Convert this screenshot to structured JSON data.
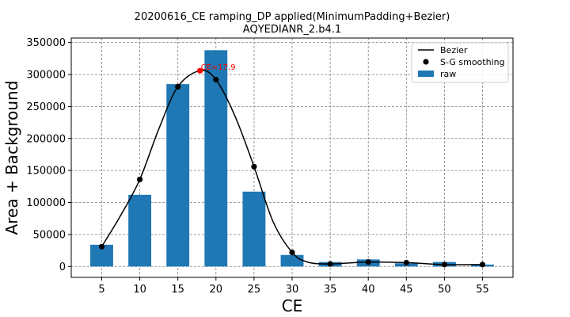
{
  "chart_data": {
    "type": "bar",
    "title": "20200616_CE ramping_DP applied(MinimumPadding+Bezier)",
    "subtitle": "AQYEDIANR_2.b4.1",
    "xlabel": "CE",
    "ylabel": "Area + Background",
    "xlim": [
      1,
      59
    ],
    "ylim": [
      -17000,
      357000
    ],
    "x_ticks": [
      5,
      10,
      15,
      20,
      25,
      30,
      35,
      40,
      45,
      50,
      55
    ],
    "y_ticks": [
      0,
      50000,
      100000,
      150000,
      200000,
      250000,
      300000,
      350000
    ],
    "grid": true,
    "legend": {
      "position": "top-right",
      "entries": [
        {
          "label": "Bezier",
          "kind": "line",
          "color": "#000000"
        },
        {
          "label": "S-G smoothing",
          "kind": "point",
          "color": "#000000"
        },
        {
          "label": "raw",
          "kind": "bar",
          "color": "#1f77b4"
        }
      ]
    },
    "series": [
      {
        "name": "raw",
        "kind": "bar",
        "color": "#1f77b4",
        "bar_width": 3,
        "x": [
          5,
          10,
          15,
          20,
          25,
          30,
          35,
          40,
          45,
          50,
          55
        ],
        "values": [
          34000,
          112000,
          285000,
          338000,
          117000,
          18000,
          7000,
          11000,
          5000,
          7000,
          3000
        ]
      },
      {
        "name": "S-G smoothing",
        "kind": "scatter",
        "color": "#000000",
        "x": [
          5,
          10,
          15,
          20,
          25,
          30,
          35,
          40,
          45,
          50,
          55
        ],
        "values": [
          31000,
          136000,
          281000,
          292000,
          156000,
          22000,
          4000,
          7000,
          6000,
          3000,
          3000
        ]
      },
      {
        "name": "Bezier",
        "kind": "line",
        "color": "#000000",
        "x": [
          5,
          7.5,
          10,
          12.5,
          15,
          17.9,
          20,
          22.5,
          25,
          27.5,
          30,
          32,
          35,
          40,
          45,
          50,
          55
        ],
        "values": [
          31000,
          80000,
          136000,
          215000,
          281000,
          306000,
          292000,
          235000,
          156000,
          70000,
          22000,
          7000,
          4000,
          7000,
          6000,
          3000,
          3000
        ]
      }
    ],
    "annotations": [
      {
        "text": "CE=17.9",
        "x": 17.9,
        "y": 306000,
        "color": "#ff0000"
      }
    ]
  }
}
